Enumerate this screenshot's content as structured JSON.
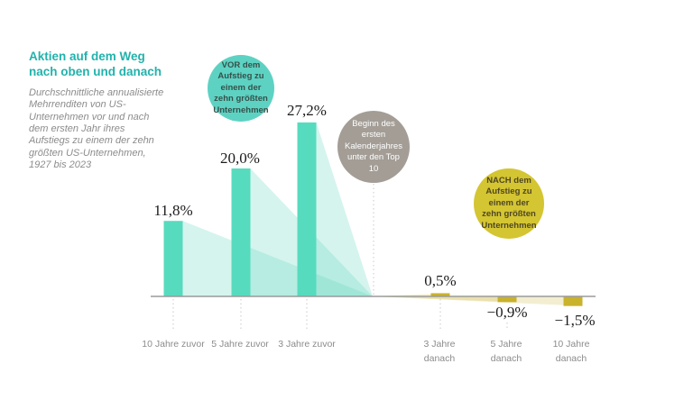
{
  "sidebar": {
    "title": "Aktien auf dem Weg nach oben und danach",
    "subtitle": "Durchschnittliche annualisierte Mehrrenditen von US-Unternehmen vor und nach dem ersten Jahr ihres Aufstiegs zu einem der zehn größten US-Unternehmen, 1927 bis 2023"
  },
  "annotations": {
    "before": "VOR dem Aufstieg zu einem der zehn größten Unternehmen",
    "event": "Beginn des ersten Kalenderjahres unter den Top 10",
    "after": "NACH dem Aufstieg zu einem der zehn größten Unternehmen"
  },
  "chart_data": {
    "type": "bar",
    "title": "Aktien auf dem Weg nach oben und danach",
    "subtitle": "Durchschnittliche annualisierte Mehrrenditen von US-Unternehmen vor und nach dem ersten Jahr ihres Aufstiegs zu einem der zehn größten US-Unternehmen, 1927 bis 2023",
    "categories": [
      "10 Jahre zuvor",
      "5 Jahre zuvor",
      "3 Jahre zuvor",
      "3 Jahre danach",
      "5 Jahre danach",
      "10 Jahre danach"
    ],
    "values": [
      11.8,
      20.0,
      27.2,
      0.5,
      -0.9,
      -1.5
    ],
    "value_labels": [
      "11,8%",
      "20,0%",
      "27,2%",
      "0,5%",
      "−0,9%",
      "−1,5%"
    ],
    "unit": "%",
    "series": [
      {
        "name": "VOR dem Aufstieg zu einem der zehn größten Unternehmen",
        "categories": [
          "10 Jahre zuvor",
          "5 Jahre zuvor",
          "3 Jahre zuvor"
        ],
        "values": [
          11.8,
          20.0,
          27.2
        ]
      },
      {
        "name": "NACH dem Aufstieg zu einem der zehn größten Unternehmen",
        "categories": [
          "3 Jahre danach",
          "5 Jahre danach",
          "10 Jahre danach"
        ],
        "values": [
          0.5,
          -0.9,
          -1.5
        ]
      }
    ],
    "xlabel": "",
    "ylabel": "",
    "ylim": [
      -2,
      28
    ],
    "grid": false,
    "legend_position": "none",
    "colors": {
      "before_bar": "#57dbbe",
      "after_bar": "#c9b22c",
      "before_fan": "rgba(92,214,188,0.26)",
      "after_fan": "rgba(201,178,44,0.22)",
      "before_circle": "#5dd2c3",
      "event_circle": "#a39d96",
      "after_circle": "#d4c532",
      "title_accent": "#22b2ac",
      "axis": "#9a9a9a"
    }
  }
}
